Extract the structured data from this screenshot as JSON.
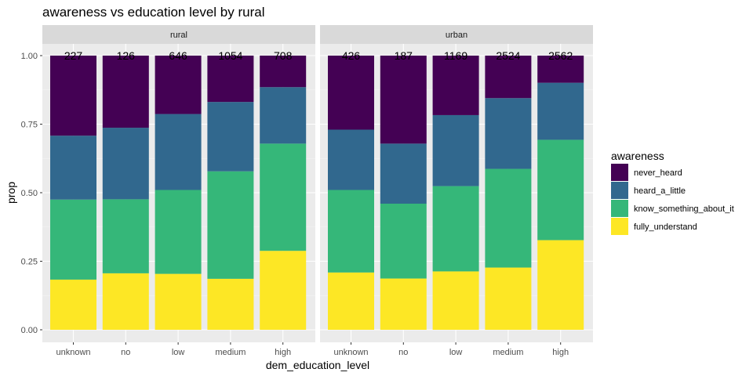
{
  "chart_data": {
    "type": "bar",
    "stacked": true,
    "title": "awareness vs education level by rural",
    "xlabel": "dem_education_level",
    "ylabel": "prop",
    "ylim": [
      0,
      1
    ],
    "yticks": [
      "0.00",
      "0.25",
      "0.50",
      "0.75",
      "1.00"
    ],
    "categories": [
      "unknown",
      "no",
      "low",
      "medium",
      "high"
    ],
    "facets": [
      "rural",
      "urban"
    ],
    "legend": {
      "title": "awareness",
      "position": "right"
    },
    "series": [
      {
        "name": "never_heard",
        "color": "#440154"
      },
      {
        "name": "heard_a_little",
        "color": "#31688E"
      },
      {
        "name": "know_something_about_it",
        "color": "#35B779"
      },
      {
        "name": "fully_understand",
        "color": "#FDE725"
      }
    ],
    "panels": [
      {
        "facet": "rural",
        "counts": [
          "227",
          "126",
          "646",
          "1054",
          "708"
        ],
        "values": {
          "fully_understand": [
            0.183,
            0.206,
            0.204,
            0.186,
            0.288
          ],
          "know_something_about_it": [
            0.292,
            0.27,
            0.306,
            0.392,
            0.391
          ],
          "heard_a_little": [
            0.233,
            0.261,
            0.277,
            0.253,
            0.206
          ],
          "never_heard": [
            0.292,
            0.263,
            0.213,
            0.169,
            0.115
          ]
        }
      },
      {
        "facet": "urban",
        "counts": [
          "426",
          "187",
          "1169",
          "2524",
          "2562"
        ],
        "values": {
          "fully_understand": [
            0.209,
            0.187,
            0.213,
            0.227,
            0.327
          ],
          "know_something_about_it": [
            0.301,
            0.273,
            0.311,
            0.36,
            0.366
          ],
          "heard_a_little": [
            0.22,
            0.219,
            0.259,
            0.258,
            0.208
          ],
          "never_heard": [
            0.27,
            0.321,
            0.217,
            0.155,
            0.099
          ]
        }
      }
    ]
  }
}
